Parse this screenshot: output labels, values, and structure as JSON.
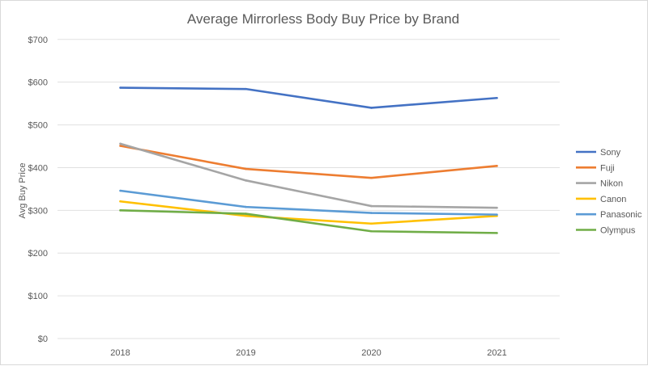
{
  "chart_data": {
    "type": "line",
    "title": "Average Mirrorless Body Buy Price by Brand",
    "xlabel": "",
    "ylabel": "Avg Buy Price",
    "categories": [
      "2018",
      "2019",
      "2020",
      "2021"
    ],
    "ylim": [
      0,
      700
    ],
    "yticks": [
      "$0",
      "$100",
      "$200",
      "$300",
      "$400",
      "$500",
      "$600",
      "$700"
    ],
    "grid": true,
    "legend": "right",
    "series": [
      {
        "name": "Sony",
        "color": "#4472C4",
        "values": [
          587,
          584,
          540,
          563
        ]
      },
      {
        "name": "Fuji",
        "color": "#ED7D31",
        "values": [
          451,
          397,
          376,
          404
        ]
      },
      {
        "name": "Nikon",
        "color": "#A5A5A5",
        "values": [
          456,
          370,
          310,
          306
        ]
      },
      {
        "name": "Canon",
        "color": "#FFC000",
        "values": [
          321,
          287,
          269,
          287
        ]
      },
      {
        "name": "Panasonic",
        "color": "#5B9BD5",
        "values": [
          346,
          308,
          294,
          290
        ]
      },
      {
        "name": "Olympus",
        "color": "#70AD47",
        "values": [
          300,
          292,
          251,
          247
        ]
      }
    ]
  }
}
